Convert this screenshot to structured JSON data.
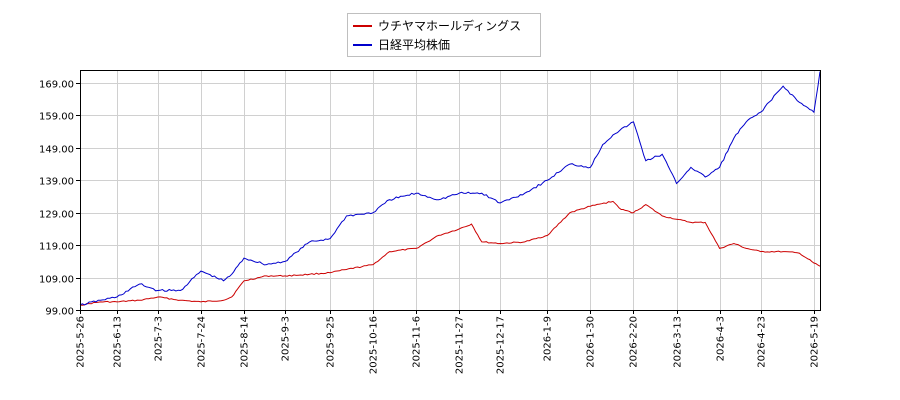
{
  "chart_data": {
    "type": "line",
    "title": "",
    "xlabel": "",
    "ylabel": "",
    "ylim": [
      99.0,
      173.0
    ],
    "yticks": [
      99.0,
      109.0,
      119.0,
      129.0,
      139.0,
      149.0,
      159.0,
      169.0
    ],
    "ytick_labels": [
      "99.00",
      "109.00",
      "119.00",
      "129.00",
      "139.00",
      "149.00",
      "159.00",
      "169.00"
    ],
    "xlim": [
      "2025-05-26",
      "2026-05-22"
    ],
    "xtick_labels": [
      "2025-5-26",
      "2025-6-13",
      "2025-7-3",
      "2025-7-24",
      "2025-8-14",
      "2025-9-3",
      "2025-9-25",
      "2025-10-16",
      "2025-11-6",
      "2025-11-27",
      "2025-12-17",
      "2026-1-9",
      "2026-1-30",
      "2026-2-20",
      "2026-3-13",
      "2026-4-3",
      "2026-4-23",
      "2026-5-19"
    ],
    "xtick_dates": [
      "2025-05-26",
      "2025-06-13",
      "2025-07-03",
      "2025-07-24",
      "2025-08-14",
      "2025-09-03",
      "2025-09-25",
      "2025-10-16",
      "2025-11-06",
      "2025-11-27",
      "2025-12-17",
      "2026-01-09",
      "2026-01-30",
      "2026-02-20",
      "2026-03-13",
      "2026-04-03",
      "2026-04-23",
      "2026-05-19"
    ],
    "grid": true,
    "legend_position": "top-center",
    "series": [
      {
        "name": "ウチヤマホールディングス",
        "color": "#cc0000",
        "x": [
          "2025-05-26",
          "2025-06-05",
          "2025-06-13",
          "2025-06-24",
          "2025-07-03",
          "2025-07-14",
          "2025-07-24",
          "2025-08-04",
          "2025-08-08",
          "2025-08-14",
          "2025-08-25",
          "2025-09-03",
          "2025-09-15",
          "2025-09-25",
          "2025-10-03",
          "2025-10-16",
          "2025-10-24",
          "2025-11-06",
          "2025-11-17",
          "2025-11-27",
          "2025-12-03",
          "2025-12-08",
          "2025-12-17",
          "2025-12-29",
          "2026-01-09",
          "2026-01-20",
          "2026-01-30",
          "2026-02-10",
          "2026-02-14",
          "2026-02-20",
          "2026-02-26",
          "2026-03-06",
          "2026-03-13",
          "2026-03-20",
          "2026-03-27",
          "2026-04-03",
          "2026-04-10",
          "2026-04-16",
          "2026-04-23",
          "2026-05-04",
          "2026-05-12",
          "2026-05-19",
          "2026-05-22"
        ],
        "values": [
          100.5,
          101.5,
          101.5,
          102.0,
          103.0,
          102.0,
          101.5,
          102.0,
          103.0,
          108.0,
          109.5,
          109.5,
          110.0,
          110.5,
          111.5,
          113.0,
          117.0,
          118.0,
          122.0,
          124.0,
          125.5,
          120.0,
          119.5,
          120.0,
          122.0,
          129.0,
          131.0,
          132.5,
          130.0,
          129.0,
          131.5,
          128.0,
          127.0,
          126.0,
          126.0,
          118.0,
          119.5,
          118.0,
          117.0,
          117.0,
          116.5,
          113.5,
          112.5
        ]
      },
      {
        "name": "日経平均株価",
        "color": "#0000cc",
        "x": [
          "2025-05-26",
          "2025-06-05",
          "2025-06-13",
          "2025-06-24",
          "2025-07-03",
          "2025-07-14",
          "2025-07-24",
          "2025-08-04",
          "2025-08-08",
          "2025-08-14",
          "2025-08-25",
          "2025-09-03",
          "2025-09-15",
          "2025-09-25",
          "2025-10-03",
          "2025-10-16",
          "2025-10-24",
          "2025-11-06",
          "2025-11-17",
          "2025-11-27",
          "2025-12-08",
          "2025-12-17",
          "2025-12-29",
          "2026-01-09",
          "2026-01-20",
          "2026-01-30",
          "2026-02-05",
          "2026-02-10",
          "2026-02-20",
          "2026-02-26",
          "2026-03-06",
          "2026-03-13",
          "2026-03-20",
          "2026-03-27",
          "2026-04-03",
          "2026-04-10",
          "2026-04-16",
          "2026-04-23",
          "2026-05-04",
          "2026-05-12",
          "2026-05-19",
          "2026-05-22"
        ],
        "values": [
          100.5,
          102.0,
          103.0,
          107.0,
          105.0,
          105.0,
          111.0,
          108.0,
          110.0,
          115.0,
          113.0,
          114.0,
          120.0,
          121.0,
          128.0,
          129.0,
          133.0,
          135.0,
          133.0,
          135.0,
          135.0,
          132.0,
          135.0,
          139.0,
          144.0,
          143.0,
          150.0,
          153.0,
          157.0,
          145.0,
          147.0,
          138.0,
          143.0,
          140.0,
          143.0,
          152.0,
          157.0,
          160.0,
          168.0,
          163.0,
          160.0,
          172.5
        ]
      }
    ]
  }
}
